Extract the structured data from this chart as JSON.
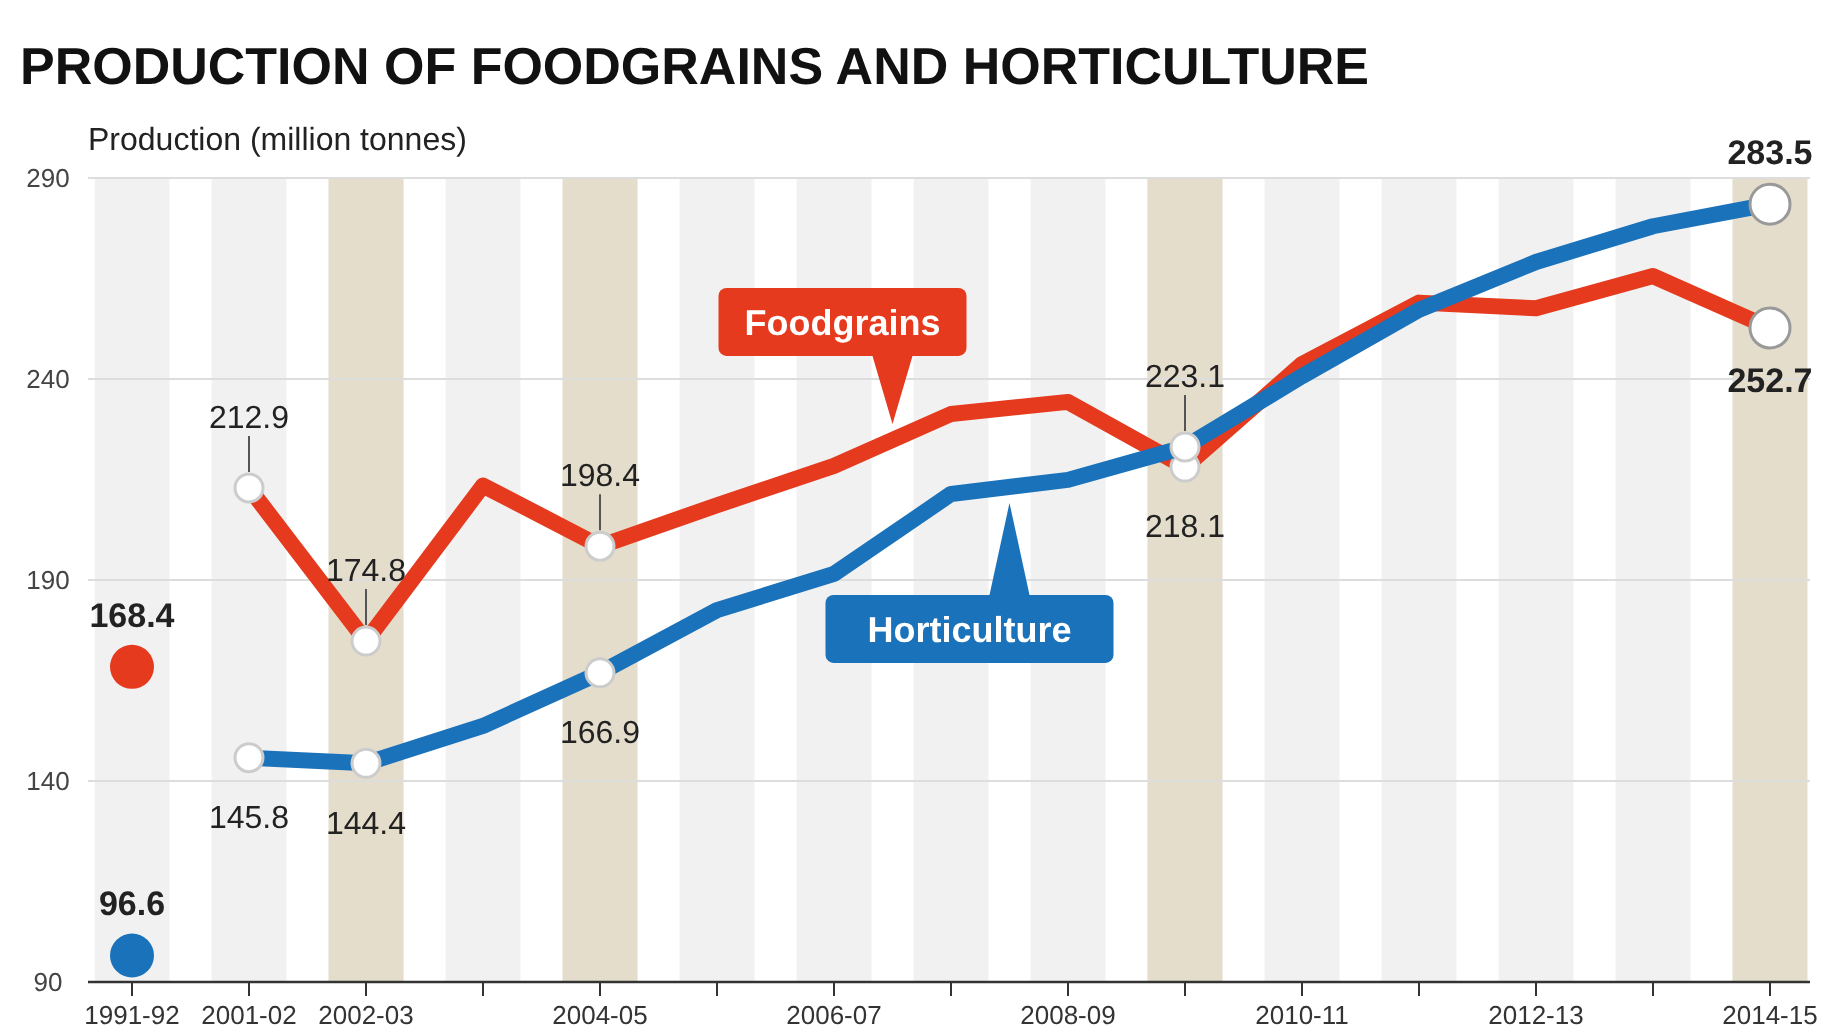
{
  "chart_data": {
    "type": "line",
    "title": "PRODUCTION OF FOODGRAINS AND HORTICULTURE",
    "ylabel": "Production (million tonnes)",
    "categories": [
      "1991-92",
      "2001-02",
      "2002-03",
      null,
      "2004-05",
      null,
      "2006-07",
      null,
      "2008-09",
      null,
      "2010-11",
      null,
      "2012-13",
      null,
      "2014-15"
    ],
    "ylim": [
      90,
      290
    ],
    "yticks": [
      90,
      140,
      190,
      240,
      290
    ],
    "grid": "y",
    "legend": "center",
    "line_style": "solid",
    "bands": [
      {
        "axis": "x",
        "from": "2002-03",
        "to": "2002-03",
        "color": "#e4ddcc"
      },
      {
        "axis": "x",
        "from": "2004-05",
        "to": "2004-05",
        "color": "#e4ddcc"
      },
      {
        "axis": "x",
        "from": "2014-15",
        "to": "2014-15",
        "color": "#e4ddcc"
      }
    ],
    "series": [
      {
        "name": "Foodgrains",
        "color": "#e63a1e",
        "values": [
          null,
          212.9,
          174.8,
          213.5,
          198.4,
          208.6,
          218.4,
          231.3,
          234.3,
          218.1,
          243.7,
          259.0,
          257.6,
          265.6,
          252.7
        ],
        "value_labels": [
          null,
          "212.9",
          "174.8",
          null,
          "198.4",
          null,
          null,
          null,
          null,
          "218.1",
          null,
          null,
          null,
          null,
          "252.7"
        ]
      },
      {
        "name": "Horticulture",
        "color": "#1a72bb",
        "values": [
          null,
          145.8,
          144.4,
          153.7,
          166.9,
          182.5,
          191.5,
          211.4,
          214.9,
          223.1,
          240.7,
          257.2,
          269.1,
          278.0,
          283.5
        ],
        "value_labels": [
          null,
          "145.8",
          "144.4",
          null,
          "166.9",
          null,
          null,
          null,
          null,
          "223.1",
          null,
          null,
          null,
          null,
          "283.5"
        ]
      },
      {
        "type": "scatter",
        "color": "#e63a1e",
        "x": [
          "1991-92"
        ],
        "values": [
          168.4
        ],
        "value_labels": [
          "168.4"
        ]
      },
      {
        "type": "scatter",
        "color": "#1a72bb",
        "x": [
          "1991-92"
        ],
        "values": [
          96.6
        ],
        "value_labels": [
          "96.6"
        ]
      }
    ]
  }
}
